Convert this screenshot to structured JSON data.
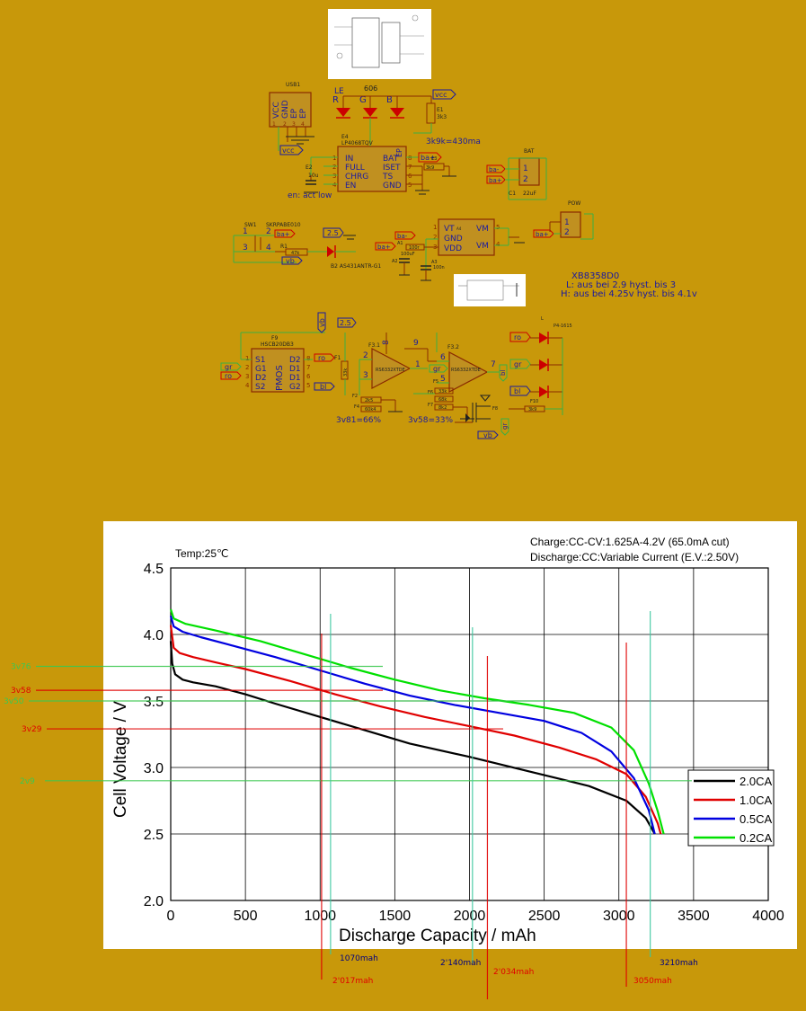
{
  "schematic": {
    "usb_label": "USB1",
    "usb_pins": [
      "VCC",
      "GND",
      "EP",
      "EP"
    ],
    "usb_pin_numbers": [
      "1",
      "2",
      "3",
      "4"
    ],
    "led_top": {
      "label": "606",
      "r": "R",
      "le": "LE",
      "g": "G",
      "b": "B"
    },
    "vcc_tag": "vcc",
    "r_e1": "E1",
    "r_e1_value": "3k3",
    "charger_ic": {
      "ref": "E4",
      "part": "LP4068TQV",
      "pins_left": [
        "IN",
        "FULL",
        "CHRG",
        "EN"
      ],
      "pins_right": [
        "BAT",
        "ISET",
        "TS",
        "GND"
      ],
      "ep": "EP",
      "left_nums": [
        "1",
        "2",
        "3",
        "4"
      ],
      "right_nums": [
        "8",
        "7",
        "6",
        "5"
      ]
    },
    "iset_note": "3k9k=430ma",
    "en_note": "en: act low",
    "cap_e2": "E2",
    "cap_e2_value": "10u",
    "r_e3": "E3",
    "r_e3_value": "3k9",
    "ba_plus": "ba+",
    "ba_minus": "ba-",
    "bat": {
      "label": "BAT",
      "pins": [
        "1",
        "2"
      ],
      "cap": "C1",
      "cap_value": "22uF"
    },
    "pow": {
      "label": "POW",
      "pins": [
        "1",
        "2"
      ]
    },
    "switch": {
      "ref": "SW1",
      "part": "SKRPABE010",
      "pins": [
        "1",
        "2",
        "3",
        "4"
      ]
    },
    "r_r1": "R1",
    "r_r1_value": "47k",
    "diode_b2": "B2 AS431ANTR-G1",
    "v25": "2.5",
    "vb": "vb",
    "xb": {
      "part": "XB8358D0",
      "ref": "A4",
      "pins_left": [
        "VT",
        "GND",
        "VDD"
      ],
      "pins_right": [
        "VM",
        "VM"
      ],
      "left_nums": [
        "1",
        "2",
        "3"
      ],
      "right_nums": [
        "5",
        "4"
      ],
      "note1": "XB8358D0",
      "note2": "L: aus bei 2.9 hyst. bis 3",
      "note3": "H: aus bei 4.25v hyst. bis 4.1v"
    },
    "r_a1": "A1",
    "r_a1_value": "100r",
    "cap_a2": "A2",
    "cap_a2_value": "100uF",
    "cap_a3": "A3",
    "cap_a3_value": "100n",
    "pmos": {
      "ref": "F9",
      "part": "HSCB20DB3",
      "pins_left": [
        "S1",
        "G1",
        "D2",
        "S2"
      ],
      "pins_right": [
        "D2",
        "D1",
        "D1",
        "G2"
      ],
      "name": "PMOS",
      "left_nums": [
        "1",
        "2",
        "3",
        "4"
      ],
      "right_nums": [
        "8",
        "7",
        "6",
        "5"
      ]
    },
    "tags": {
      "ro": "ro",
      "gr": "gr",
      "bl": "bl"
    },
    "opamp1": {
      "ref": "F3.1",
      "part": "RS6332XTDE",
      "pin2": "2",
      "pin3": "3",
      "pin1": "1",
      "pin8": "8",
      "pin9": "9"
    },
    "opamp2": {
      "ref": "F3.2",
      "part": "RS6332XTDE",
      "pin6": "6",
      "pin5": "5",
      "pin7": "7"
    },
    "r_f1": "F1",
    "r_f1_value": "33k",
    "r_f2_value": "2k5",
    "r_f4_value": "60k4",
    "r_f6_value": "33k",
    "r_f5_value": "68k",
    "r_f7_value": "8k2",
    "r_f10_value": "3k9",
    "r_f2": "F2",
    "r_f4": "F4",
    "r_f5": "F5",
    "r_f6": "F6",
    "r_f7": "F7",
    "r_f8": "F8",
    "r_f10": "F10",
    "led_right": {
      "label": "L",
      "part": "P4-1615"
    },
    "note_3v81": "3v81=66%",
    "note_3v58": "3v58=33%"
  },
  "chart_data": {
    "type": "line",
    "title": "",
    "temp_label": "Temp:25℃",
    "charge_note": "Charge:CC-CV:1.625A-4.2V (65.0mA cut)",
    "discharge_note": "Discharge:CC:Variable Current (E.V.:2.50V)",
    "xlabel": "Discharge  Capacity  /  mAh",
    "ylabel": "Cell  Voltage  /  V",
    "xlim": [
      0,
      4000
    ],
    "ylim": [
      2.0,
      4.5
    ],
    "xticks": [
      "0",
      "500",
      "1000",
      "1500",
      "2000",
      "2500",
      "3000",
      "3500",
      "4000"
    ],
    "yticks": [
      "2.0",
      "2.5",
      "3.0",
      "3.5",
      "4.0",
      "4.5"
    ],
    "grid": true,
    "legend_position": "bottom-right",
    "series": [
      {
        "name": "2.0CA",
        "color": "#000000",
        "points": [
          [
            0,
            3.95
          ],
          [
            10,
            3.78
          ],
          [
            30,
            3.7
          ],
          [
            80,
            3.66
          ],
          [
            150,
            3.64
          ],
          [
            300,
            3.61
          ],
          [
            500,
            3.55
          ],
          [
            700,
            3.48
          ],
          [
            1000,
            3.38
          ],
          [
            1300,
            3.28
          ],
          [
            1600,
            3.18
          ],
          [
            2000,
            3.08
          ],
          [
            2400,
            2.97
          ],
          [
            2800,
            2.86
          ],
          [
            3050,
            2.75
          ],
          [
            3180,
            2.62
          ],
          [
            3240,
            2.5
          ]
        ]
      },
      {
        "name": "1.0CA",
        "color": "#e00000",
        "points": [
          [
            0,
            4.07
          ],
          [
            20,
            3.9
          ],
          [
            60,
            3.86
          ],
          [
            150,
            3.83
          ],
          [
            300,
            3.79
          ],
          [
            500,
            3.74
          ],
          [
            800,
            3.65
          ],
          [
            1100,
            3.55
          ],
          [
            1400,
            3.46
          ],
          [
            1700,
            3.38
          ],
          [
            2000,
            3.31
          ],
          [
            2300,
            3.24
          ],
          [
            2600,
            3.15
          ],
          [
            2850,
            3.06
          ],
          [
            3050,
            2.95
          ],
          [
            3180,
            2.78
          ],
          [
            3260,
            2.58
          ],
          [
            3280,
            2.5
          ]
        ]
      },
      {
        "name": "0.5CA",
        "color": "#0000e0",
        "points": [
          [
            0,
            4.14
          ],
          [
            20,
            4.06
          ],
          [
            80,
            4.02
          ],
          [
            200,
            3.98
          ],
          [
            400,
            3.92
          ],
          [
            700,
            3.83
          ],
          [
            1000,
            3.73
          ],
          [
            1300,
            3.63
          ],
          [
            1600,
            3.54
          ],
          [
            1900,
            3.47
          ],
          [
            2200,
            3.41
          ],
          [
            2500,
            3.35
          ],
          [
            2750,
            3.26
          ],
          [
            2950,
            3.12
          ],
          [
            3100,
            2.92
          ],
          [
            3200,
            2.68
          ],
          [
            3240,
            2.5
          ]
        ]
      },
      {
        "name": "0.2CA",
        "color": "#00e000",
        "points": [
          [
            0,
            4.19
          ],
          [
            20,
            4.12
          ],
          [
            100,
            4.08
          ],
          [
            300,
            4.03
          ],
          [
            600,
            3.95
          ],
          [
            900,
            3.85
          ],
          [
            1200,
            3.75
          ],
          [
            1500,
            3.66
          ],
          [
            1800,
            3.58
          ],
          [
            2100,
            3.52
          ],
          [
            2400,
            3.47
          ],
          [
            2700,
            3.41
          ],
          [
            2950,
            3.3
          ],
          [
            3100,
            3.13
          ],
          [
            3200,
            2.88
          ],
          [
            3260,
            2.67
          ],
          [
            3300,
            2.5
          ]
        ]
      }
    ]
  },
  "overlay": {
    "hlines": [
      {
        "label": "3v76",
        "value": 3.76,
        "color": "#3cc850"
      },
      {
        "label": "3v58",
        "value": 3.58,
        "color": "#e00000"
      },
      {
        "label": "3v50",
        "value": 3.5,
        "color": "#3cc850"
      },
      {
        "label": "3v29",
        "value": 3.29,
        "color": "#e00000"
      },
      {
        "label": "2v9",
        "value": 2.9,
        "color": "#3cc850"
      }
    ],
    "vlines": [
      {
        "label": "1070mah",
        "value": 1070,
        "color": "#000080"
      },
      {
        "label": "2'017mah",
        "value": 1010,
        "color": "#e00000"
      },
      {
        "label": "2'140mah",
        "value": 2020,
        "color": "#000080"
      },
      {
        "label": "2'034mah",
        "value": 2120,
        "color": "#e00000"
      },
      {
        "label": "3050mah",
        "value": 3050,
        "color": "#e00000"
      },
      {
        "label": "3210mah",
        "value": 3210,
        "color": "#000080"
      }
    ]
  }
}
